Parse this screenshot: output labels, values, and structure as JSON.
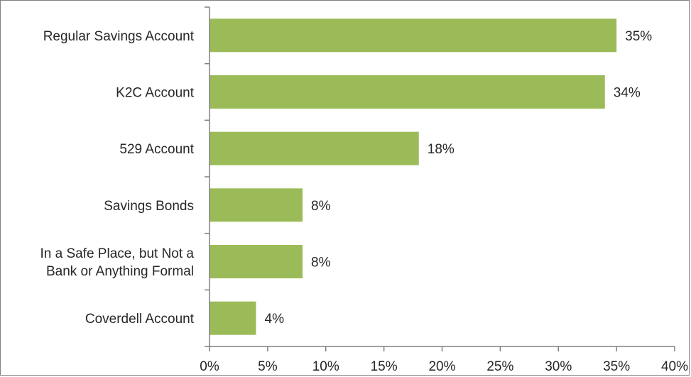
{
  "chart_data": {
    "type": "bar",
    "orientation": "horizontal",
    "categories": [
      [
        "Regular Savings Account"
      ],
      [
        "K2C Account"
      ],
      [
        "529 Account"
      ],
      [
        "Savings Bonds"
      ],
      [
        "In a Safe Place, but Not a",
        "Bank or Anything Formal"
      ],
      [
        "Coverdell Account"
      ]
    ],
    "values": [
      35,
      34,
      18,
      8,
      8,
      4
    ],
    "value_labels": [
      "35%",
      "34%",
      "18%",
      "8%",
      "8%",
      "4%"
    ],
    "xlim": [
      0,
      40
    ],
    "xticks": [
      0,
      5,
      10,
      15,
      20,
      25,
      30,
      35,
      40
    ],
    "xtick_labels": [
      "0%",
      "5%",
      "10%",
      "15%",
      "20%",
      "25%",
      "30%",
      "35%",
      "40%"
    ],
    "title": "",
    "xlabel": "",
    "ylabel": "",
    "grid": false,
    "legend": "none",
    "colors": {
      "bar": "#9BBB59",
      "axis": "#808080",
      "text": "#262626",
      "border": "#808080"
    }
  }
}
